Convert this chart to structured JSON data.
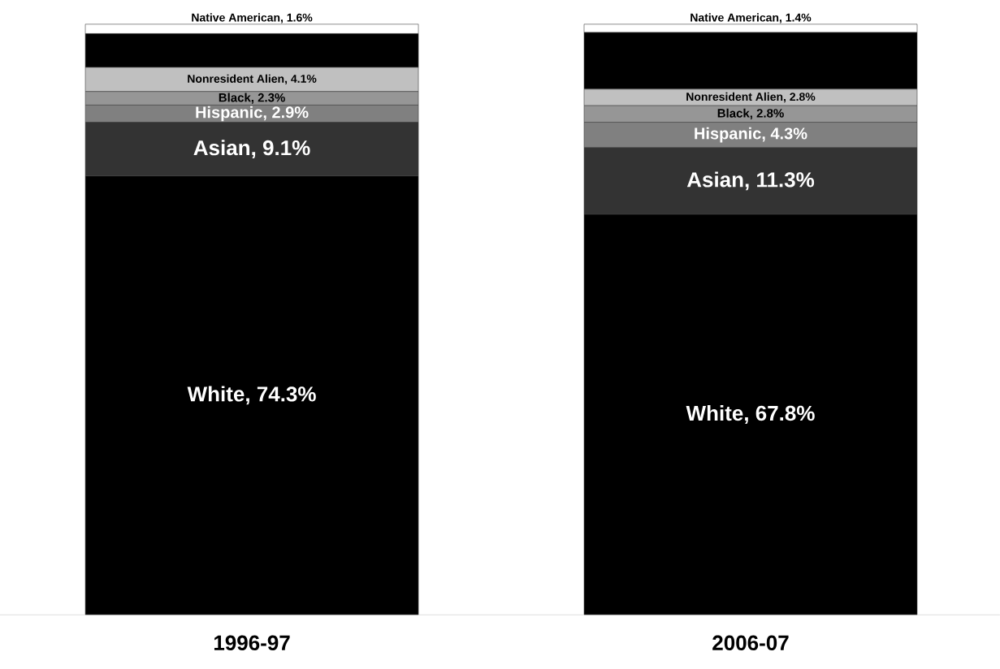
{
  "chart_data": {
    "type": "bar",
    "stacked": true,
    "categories": [
      "1996-97",
      "2006-07"
    ],
    "series": [
      {
        "color": "#000000",
        "values": [
          74.3,
          67.8
        ],
        "value_labels": [
          "White, 74.3%",
          "White, 67.8%"
        ]
      },
      {
        "color": "#333333",
        "values": [
          9.1,
          11.3
        ],
        "value_labels": [
          "Asian, 9.1%",
          "Asian, 11.3%"
        ]
      },
      {
        "color": "#808080",
        "values": [
          2.9,
          4.3
        ],
        "value_labels": [
          "Hispanic, 2.9%",
          "Hispanic, 4.3%"
        ]
      },
      {
        "color": "#969696",
        "values": [
          2.3,
          2.8
        ],
        "value_labels": [
          "Black, 2.3%",
          "Black, 2.8%"
        ]
      },
      {
        "color": "#c0c0c0",
        "values": [
          4.1,
          2.8
        ],
        "value_labels": [
          "Nonresident Alien, 4.1%",
          "Nonresident Alien, 2.8%"
        ]
      },
      {
        "color": "#000000",
        "values": [
          5.7,
          9.6
        ]
      },
      {
        "color": "#ffffff",
        "values": [
          1.6,
          1.4
        ],
        "value_labels": [
          "Native American, 1.6%",
          "Native American, 1.4%"
        ]
      }
    ]
  }
}
